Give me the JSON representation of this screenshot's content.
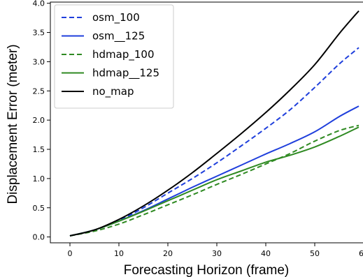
{
  "chart_data": {
    "type": "line",
    "title": "",
    "xlabel": "Forecasting Horizon (frame)",
    "ylabel": "Displacement Error (meter)",
    "xlim": [
      -4,
      60
    ],
    "ylim": [
      -0.1,
      4.02
    ],
    "xticks": [
      0,
      10,
      20,
      30,
      40,
      50,
      60
    ],
    "xtick_labels": [
      "0",
      "10",
      "20",
      "30",
      "40",
      "50",
      "60"
    ],
    "yticks": [
      0.0,
      0.5,
      1.0,
      1.5,
      2.0,
      2.5,
      3.0,
      3.5,
      4.0
    ],
    "ytick_labels": [
      "0.0",
      "0.5",
      "1.0",
      "1.5",
      "2.0",
      "2.5",
      "3.0",
      "3.5",
      "4.0"
    ],
    "grid": false,
    "legend_position": "top-left",
    "series": [
      {
        "name": "osm_100",
        "color": "#1f3fdc",
        "dash": "dashed",
        "x": [
          0,
          5,
          10,
          15,
          20,
          25,
          30,
          35,
          40,
          45,
          50,
          55,
          59
        ],
        "y": [
          0.02,
          0.12,
          0.28,
          0.5,
          0.75,
          1.0,
          1.27,
          1.56,
          1.86,
          2.18,
          2.56,
          2.96,
          3.24
        ]
      },
      {
        "name": "osm__125",
        "color": "#1f3fdc",
        "dash": "solid",
        "x": [
          0,
          5,
          10,
          15,
          20,
          25,
          30,
          35,
          40,
          45,
          50,
          55,
          59
        ],
        "y": [
          0.02,
          0.12,
          0.27,
          0.45,
          0.65,
          0.85,
          1.04,
          1.23,
          1.42,
          1.6,
          1.8,
          2.06,
          2.24
        ]
      },
      {
        "name": "hdmap_100",
        "color": "#2f8a22",
        "dash": "dashed",
        "x": [
          0,
          5,
          10,
          15,
          20,
          25,
          30,
          35,
          40,
          45,
          50,
          55,
          59
        ],
        "y": [
          0.02,
          0.1,
          0.22,
          0.38,
          0.55,
          0.72,
          0.9,
          1.07,
          1.25,
          1.43,
          1.64,
          1.82,
          1.91
        ]
      },
      {
        "name": "hdmap__125",
        "color": "#2f8a22",
        "dash": "solid",
        "x": [
          0,
          5,
          10,
          15,
          20,
          25,
          30,
          35,
          40,
          45,
          50,
          55,
          59
        ],
        "y": [
          0.02,
          0.12,
          0.27,
          0.44,
          0.62,
          0.8,
          0.98,
          1.13,
          1.28,
          1.4,
          1.54,
          1.72,
          1.88
        ]
      },
      {
        "name": "no_map",
        "color": "#000000",
        "dash": "solid",
        "x": [
          0,
          5,
          10,
          15,
          20,
          25,
          30,
          35,
          40,
          45,
          50,
          55,
          59
        ],
        "y": [
          0.02,
          0.12,
          0.3,
          0.53,
          0.8,
          1.1,
          1.43,
          1.77,
          2.13,
          2.52,
          2.95,
          3.48,
          3.87
        ]
      }
    ]
  }
}
